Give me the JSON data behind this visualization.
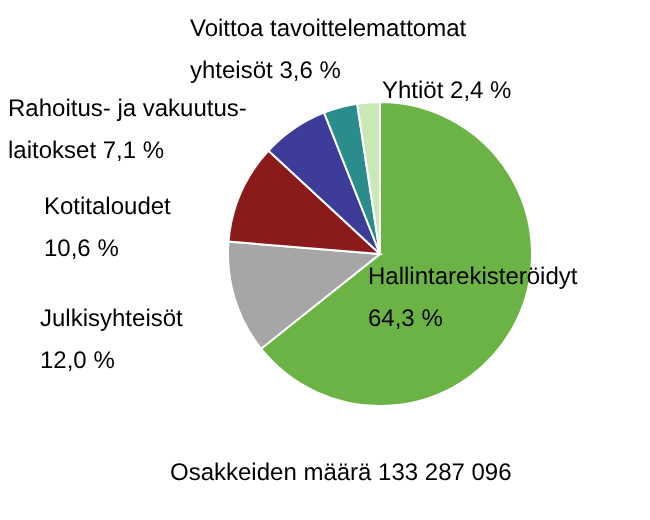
{
  "chart_data": {
    "type": "pie",
    "categories": [
      "Hallintarekisteröidyt",
      "Julkisyhteisöt",
      "Kotitaloudet",
      "Rahoitus- ja vakuutus- laitokset",
      "Voittoa tavoittelemattomat yhteisöt",
      "Yhtiöt"
    ],
    "values": [
      64.3,
      12.0,
      10.6,
      7.1,
      3.6,
      2.4
    ],
    "value_labels": [
      "64,3 %",
      "12,0 %",
      "10,6 %",
      "7,1 %",
      "3,6 %",
      "2,4 %"
    ],
    "colors": [
      "#6ab344",
      "#a6a6a6",
      "#8b1a1a",
      "#3d3d99",
      "#2b8c8c",
      "#c9e8b5"
    ],
    "annotations": [
      "Osakkeiden määrä 133 287 096"
    ]
  }
}
